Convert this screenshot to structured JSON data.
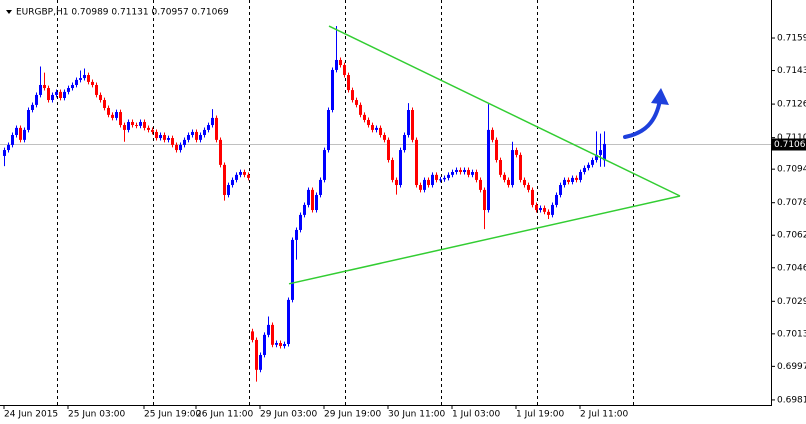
{
  "chart_data": {
    "type": "candlestick",
    "header": "EURGBP,H1  0.70989 0.71131 0.70957 0.71069",
    "current_price": 0.71069,
    "up_color": "#0000ff",
    "down_color": "#ff0000",
    "trend_color": "#32cd32",
    "grid": true,
    "xlim": [
      -1,
      191.75
    ],
    "ylim": [
      0.69785,
      0.71777
    ],
    "yticks": [
      {
        "value": 0.7159,
        "label": "0.71590"
      },
      {
        "value": 0.7143,
        "label": "0.71430"
      },
      0.71265,
      {
        "value": 0.711,
        "label": "0.71100"
      },
      0.70945,
      {
        "value": 0.7078,
        "label": "0.70780"
      },
      {
        "value": 0.7062,
        "label": "0.70620"
      },
      {
        "value": 0.7046,
        "label": "0.70460"
      },
      0.70295,
      0.70135,
      0.69975,
      {
        "value": 0.6981,
        "label": "0.69810"
      }
    ],
    "xticks": [
      {
        "value": 0,
        "label": "24 Jun 2015"
      },
      {
        "value": 16,
        "label": "25 Jun 03:00"
      },
      {
        "value": 35,
        "label": "25 Jun 19:00"
      },
      {
        "value": 48,
        "label": "26 Jun 11:00"
      },
      {
        "value": 64,
        "label": "29 Jun 03:00"
      },
      {
        "value": 80,
        "label": "29 Jun 19:00"
      },
      {
        "value": 96,
        "label": "30 Jun 11:00"
      },
      {
        "value": 112,
        "label": "1 Jul 03:00"
      },
      {
        "value": 128,
        "label": "1 Jul 19:00"
      },
      {
        "value": 144,
        "label": "2 Jul 11:00"
      }
    ],
    "vgrid": [
      13.25,
      37.25,
      61.25,
      85.25,
      109.25,
      133.25,
      157.25
    ],
    "trendlines": [
      {
        "x": [
          81.25,
          169
        ],
        "y": [
          0.71649,
          0.70813
        ]
      },
      {
        "x": [
          71.25,
          169
        ],
        "y": [
          0.70381,
          0.70813
        ]
      }
    ],
    "ohlc": [
      [
        0.7101,
        0.71051,
        0.7096,
        0.71039
      ],
      [
        0.71039,
        0.71076,
        0.71027,
        0.71064
      ],
      [
        0.71064,
        0.71125,
        0.71052,
        0.71113
      ],
      [
        0.71113,
        0.7116,
        0.71101,
        0.71148
      ],
      [
        0.71148,
        0.7116,
        0.71077,
        0.71089
      ],
      [
        0.71089,
        0.7115,
        0.71077,
        0.71138
      ],
      [
        0.71138,
        0.71248,
        0.71126,
        0.71236
      ],
      [
        0.71236,
        0.71273,
        0.71224,
        0.71261
      ],
      [
        0.71261,
        0.71322,
        0.71249,
        0.7131
      ],
      [
        0.7131,
        0.7145,
        0.71298,
        0.71359
      ],
      [
        0.71359,
        0.7142,
        0.71332,
        0.71344
      ],
      [
        0.71344,
        0.71356,
        0.71273,
        0.71285
      ],
      [
        0.71285,
        0.71322,
        0.71273,
        0.7131
      ],
      [
        0.7131,
        0.71337,
        0.71298,
        0.71325
      ],
      [
        0.71325,
        0.71337,
        0.71283,
        0.71295
      ],
      [
        0.71295,
        0.71337,
        0.71283,
        0.71325
      ],
      [
        0.71325,
        0.71356,
        0.71313,
        0.71344
      ],
      [
        0.71344,
        0.71371,
        0.71332,
        0.71359
      ],
      [
        0.71359,
        0.71396,
        0.71347,
        0.71384
      ],
      [
        0.71384,
        0.7143,
        0.71372,
        0.71393
      ],
      [
        0.71393,
        0.7144,
        0.71381,
        0.71408
      ],
      [
        0.71408,
        0.7142,
        0.71362,
        0.71374
      ],
      [
        0.71374,
        0.71386,
        0.71347,
        0.71359
      ],
      [
        0.71359,
        0.71371,
        0.71298,
        0.7131
      ],
      [
        0.7131,
        0.71322,
        0.71273,
        0.71285
      ],
      [
        0.71285,
        0.71297,
        0.71234,
        0.71246
      ],
      [
        0.71246,
        0.71258,
        0.712,
        0.71212
      ],
      [
        0.71212,
        0.71224,
        0.71185,
        0.71197
      ],
      [
        0.71197,
        0.71238,
        0.71185,
        0.71226
      ],
      [
        0.71226,
        0.71238,
        0.7115,
        0.71162
      ],
      [
        0.71162,
        0.71174,
        0.7108,
        0.71138
      ],
      [
        0.71138,
        0.71189,
        0.71126,
        0.71177
      ],
      [
        0.71177,
        0.71189,
        0.7115,
        0.71162
      ],
      [
        0.71162,
        0.71174,
        0.71146,
        0.71158
      ],
      [
        0.71158,
        0.71189,
        0.71146,
        0.71177
      ],
      [
        0.71177,
        0.71189,
        0.71136,
        0.71148
      ],
      [
        0.71148,
        0.7116,
        0.71126,
        0.71138
      ],
      [
        0.71138,
        0.7115,
        0.71116,
        0.71128
      ],
      [
        0.71128,
        0.7114,
        0.71086,
        0.71098
      ],
      [
        0.71098,
        0.71125,
        0.71086,
        0.71113
      ],
      [
        0.71113,
        0.71125,
        0.71077,
        0.71089
      ],
      [
        0.71089,
        0.7111,
        0.71077,
        0.71098
      ],
      [
        0.71098,
        0.7111,
        0.71052,
        0.71064
      ],
      [
        0.71064,
        0.71076,
        0.71027,
        0.71039
      ],
      [
        0.71039,
        0.71076,
        0.71027,
        0.71064
      ],
      [
        0.71064,
        0.71101,
        0.71052,
        0.71089
      ],
      [
        0.71089,
        0.71125,
        0.71077,
        0.71113
      ],
      [
        0.71113,
        0.7114,
        0.71101,
        0.71128
      ],
      [
        0.71128,
        0.7114,
        0.71077,
        0.71089
      ],
      [
        0.71089,
        0.71125,
        0.71077,
        0.71113
      ],
      [
        0.71113,
        0.7115,
        0.71101,
        0.71138
      ],
      [
        0.71138,
        0.71174,
        0.71126,
        0.71162
      ],
      [
        0.71162,
        0.7124,
        0.7115,
        0.71197
      ],
      [
        0.71197,
        0.71209,
        0.71077,
        0.71089
      ],
      [
        0.71089,
        0.71101,
        0.70954,
        0.70966
      ],
      [
        0.70966,
        0.70978,
        0.7079,
        0.70818
      ],
      [
        0.70818,
        0.70879,
        0.70806,
        0.70867
      ],
      [
        0.70867,
        0.70904,
        0.70855,
        0.70892
      ],
      [
        0.70892,
        0.70929,
        0.7088,
        0.70917
      ],
      [
        0.70917,
        0.70943,
        0.70905,
        0.70931
      ],
      [
        0.70931,
        0.70943,
        0.70905,
        0.70917
      ],
      [
        0.70917,
        0.70929,
        0.7089,
        0.70902
      ],
      [
        0.70147,
        0.7016,
        0.70093,
        0.70105
      ],
      [
        0.70105,
        0.70117,
        0.699,
        0.69958
      ],
      [
        0.69958,
        0.70043,
        0.69946,
        0.70031
      ],
      [
        0.70031,
        0.70142,
        0.70019,
        0.7013
      ],
      [
        0.7013,
        0.7022,
        0.70118,
        0.70179
      ],
      [
        0.70179,
        0.70191,
        0.70069,
        0.70081
      ],
      [
        0.70081,
        0.70102,
        0.70069,
        0.7009
      ],
      [
        0.7009,
        0.70102,
        0.70063,
        0.70075
      ],
      [
        0.70075,
        0.70097,
        0.70063,
        0.70085
      ],
      [
        0.70085,
        0.70314,
        0.70073,
        0.70302
      ],
      [
        0.70302,
        0.70609,
        0.7029,
        0.70597
      ],
      [
        0.70597,
        0.70658,
        0.705,
        0.70646
      ],
      [
        0.70646,
        0.70732,
        0.70634,
        0.7072
      ],
      [
        0.7072,
        0.70781,
        0.70708,
        0.70769
      ],
      [
        0.70769,
        0.70855,
        0.70757,
        0.70843
      ],
      [
        0.70843,
        0.70855,
        0.70732,
        0.70744
      ],
      [
        0.70744,
        0.7083,
        0.70732,
        0.70818
      ],
      [
        0.70818,
        0.70904,
        0.70806,
        0.70892
      ],
      [
        0.70892,
        0.71051,
        0.7088,
        0.71039
      ],
      [
        0.71039,
        0.71248,
        0.71027,
        0.71236
      ],
      [
        0.71236,
        0.71445,
        0.71224,
        0.71433
      ],
      [
        0.71433,
        0.71649,
        0.71421,
        0.71482
      ],
      [
        0.71482,
        0.71494,
        0.71445,
        0.71457
      ],
      [
        0.71457,
        0.71469,
        0.71396,
        0.71408
      ],
      [
        0.71408,
        0.7142,
        0.71322,
        0.71334
      ],
      [
        0.71334,
        0.71346,
        0.71273,
        0.71285
      ],
      [
        0.71285,
        0.71297,
        0.71249,
        0.71261
      ],
      [
        0.71261,
        0.71273,
        0.712,
        0.71212
      ],
      [
        0.71212,
        0.71224,
        0.71175,
        0.71187
      ],
      [
        0.71187,
        0.71199,
        0.7115,
        0.71162
      ],
      [
        0.71162,
        0.71174,
        0.71126,
        0.71138
      ],
      [
        0.71138,
        0.7116,
        0.71126,
        0.71148
      ],
      [
        0.71148,
        0.7116,
        0.71101,
        0.71113
      ],
      [
        0.71113,
        0.71125,
        0.71077,
        0.71089
      ],
      [
        0.71089,
        0.71101,
        0.70978,
        0.7099
      ],
      [
        0.7099,
        0.71002,
        0.7088,
        0.70892
      ],
      [
        0.70892,
        0.70904,
        0.7082,
        0.70867
      ],
      [
        0.70867,
        0.71051,
        0.70855,
        0.71039
      ],
      [
        0.71039,
        0.71125,
        0.71027,
        0.71113
      ],
      [
        0.71113,
        0.7127,
        0.71101,
        0.71236
      ],
      [
        0.71236,
        0.71248,
        0.71077,
        0.71089
      ],
      [
        0.71089,
        0.71101,
        0.70855,
        0.70867
      ],
      [
        0.70867,
        0.70879,
        0.70831,
        0.70843
      ],
      [
        0.70843,
        0.70904,
        0.70831,
        0.70892
      ],
      [
        0.70892,
        0.70904,
        0.70855,
        0.70867
      ],
      [
        0.70867,
        0.70929,
        0.70855,
        0.70917
      ],
      [
        0.70917,
        0.70929,
        0.7088,
        0.70892
      ],
      [
        0.70892,
        0.70907,
        0.7088,
        0.70895
      ],
      [
        0.70895,
        0.70914,
        0.70883,
        0.70902
      ],
      [
        0.70902,
        0.70929,
        0.7089,
        0.70917
      ],
      [
        0.70917,
        0.70943,
        0.70905,
        0.70931
      ],
      [
        0.70931,
        0.70953,
        0.70919,
        0.70941
      ],
      [
        0.70941,
        0.70953,
        0.70919,
        0.70931
      ],
      [
        0.70931,
        0.70953,
        0.70919,
        0.70941
      ],
      [
        0.70941,
        0.70953,
        0.70905,
        0.70917
      ],
      [
        0.70917,
        0.70943,
        0.70905,
        0.70931
      ],
      [
        0.70931,
        0.70943,
        0.7088,
        0.70892
      ],
      [
        0.70892,
        0.70904,
        0.70831,
        0.70843
      ],
      [
        0.70843,
        0.70855,
        0.7065,
        0.70744
      ],
      [
        0.70744,
        0.71265,
        0.70732,
        0.71138
      ],
      [
        0.71138,
        0.7115,
        0.71077,
        0.71089
      ],
      [
        0.71089,
        0.71101,
        0.70978,
        0.7099
      ],
      [
        0.7099,
        0.71002,
        0.70905,
        0.70917
      ],
      [
        0.70917,
        0.70929,
        0.7088,
        0.70892
      ],
      [
        0.70892,
        0.70904,
        0.70855,
        0.70867
      ],
      [
        0.70867,
        0.7108,
        0.70855,
        0.71039
      ],
      [
        0.71039,
        0.71051,
        0.71003,
        0.71015
      ],
      [
        0.71015,
        0.71027,
        0.7088,
        0.70892
      ],
      [
        0.70892,
        0.70904,
        0.70855,
        0.70867
      ],
      [
        0.70867,
        0.70879,
        0.70831,
        0.70843
      ],
      [
        0.70843,
        0.70855,
        0.70757,
        0.70769
      ],
      [
        0.70769,
        0.70781,
        0.70732,
        0.70744
      ],
      [
        0.70744,
        0.70766,
        0.70732,
        0.70754
      ],
      [
        0.70754,
        0.70766,
        0.70723,
        0.70735
      ],
      [
        0.70735,
        0.70747,
        0.707,
        0.7072
      ],
      [
        0.7072,
        0.70781,
        0.70708,
        0.70769
      ],
      [
        0.70769,
        0.7083,
        0.70757,
        0.70818
      ],
      [
        0.70818,
        0.70879,
        0.70806,
        0.70867
      ],
      [
        0.70867,
        0.70904,
        0.70855,
        0.70892
      ],
      [
        0.70892,
        0.70904,
        0.7087,
        0.70882
      ],
      [
        0.70882,
        0.70914,
        0.7087,
        0.70902
      ],
      [
        0.70902,
        0.70914,
        0.7088,
        0.70892
      ],
      [
        0.70892,
        0.70943,
        0.7088,
        0.70931
      ],
      [
        0.70931,
        0.70963,
        0.70919,
        0.70951
      ],
      [
        0.70951,
        0.70978,
        0.70939,
        0.70966
      ],
      [
        0.70966,
        0.71002,
        0.70954,
        0.7099
      ],
      [
        0.7099,
        0.71131,
        0.70978,
        0.71015
      ],
      [
        0.71015,
        0.7112,
        0.70957,
        0.71039
      ],
      [
        0.70989,
        0.71131,
        0.70957,
        0.71069
      ]
    ]
  }
}
